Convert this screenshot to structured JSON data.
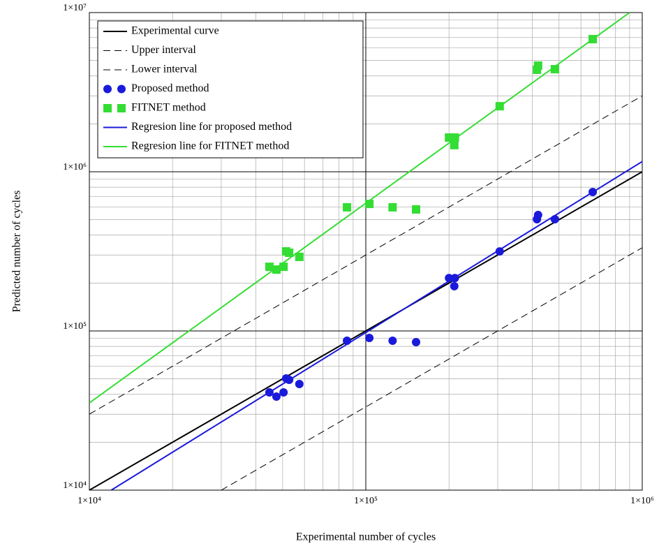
{
  "chart_data": {
    "type": "scatter",
    "x_label": "Experimental number of cycles",
    "y_label": "Predicted number of cycles",
    "log_x": true,
    "log_y": true,
    "grid": true,
    "minor_grid": true,
    "legend": "upper left",
    "xlim": [
      10000,
      1000000
    ],
    "ylim": [
      10000,
      10000000
    ],
    "xticks": [
      {
        "value": 10000,
        "label": "1×10⁴"
      },
      {
        "value": 100000,
        "label": "1×10⁵"
      },
      {
        "value": 1000000,
        "label": "1×10⁶"
      }
    ],
    "yticks": [
      {
        "value": 10000,
        "label": "1×10⁴"
      },
      {
        "value": 100000,
        "label": "1×10⁵"
      },
      {
        "value": 1000000,
        "label": "1×10⁶"
      },
      {
        "value": 10000000,
        "label": "1×10⁷"
      }
    ],
    "series": [
      {
        "name": "Experimental curve",
        "color": "#000000",
        "mode": "line",
        "dash": "solid",
        "x": [
          10000,
          1000000
        ],
        "values": [
          10000,
          1000000
        ]
      },
      {
        "name": "Upper interval",
        "color": "#000000",
        "mode": "line",
        "dash": "dashed",
        "x": [
          10000,
          1000000
        ],
        "values": [
          30000,
          3000000
        ]
      },
      {
        "name": "Lower interval",
        "color": "#000000",
        "mode": "line",
        "dash": "dashed",
        "x": [
          30000,
          1000000
        ],
        "values": [
          10000,
          333333
        ]
      },
      {
        "name": "Proposed method",
        "color": "#1a1adb",
        "mode": "markers",
        "marker": "circle",
        "x": [
          44800,
          47500,
          50400,
          51500,
          52800,
          57500,
          85500,
          103000,
          125000,
          152000,
          200000,
          210000,
          209000,
          305000,
          416000,
          420000,
          483000,
          662000
        ],
        "values": [
          41100,
          38700,
          41100,
          50300,
          49300,
          46400,
          86800,
          90400,
          86800,
          85100,
          215000,
          215000,
          191000,
          316000,
          503000,
          535000,
          503000,
          746000
        ]
      },
      {
        "name": "FITNET method",
        "color": "#33dd33",
        "mode": "markers",
        "marker": "square",
        "x": [
          44800,
          47500,
          50400,
          51500,
          52800,
          57500,
          85500,
          103000,
          125000,
          152000,
          200000,
          210000,
          209000,
          305000,
          416000,
          420000,
          483000,
          662000
        ],
        "values": [
          253000,
          243000,
          253000,
          316000,
          310000,
          292000,
          598000,
          628000,
          598000,
          580000,
          1640000,
          1640000,
          1470000,
          2580000,
          4370000,
          4640000,
          4410000,
          6810000
        ]
      },
      {
        "name": "Regresion line for proposed method",
        "color": "#1a1adb",
        "mode": "line",
        "dash": "solid",
        "x": [
          12000,
          1000000
        ],
        "values": [
          10000,
          1160000
        ]
      },
      {
        "name": "Regresion line for FITNET method",
        "color": "#33dd33",
        "mode": "line",
        "dash": "solid",
        "x": [
          10000,
          900000
        ],
        "values": [
          35300,
          10000000
        ]
      }
    ]
  }
}
